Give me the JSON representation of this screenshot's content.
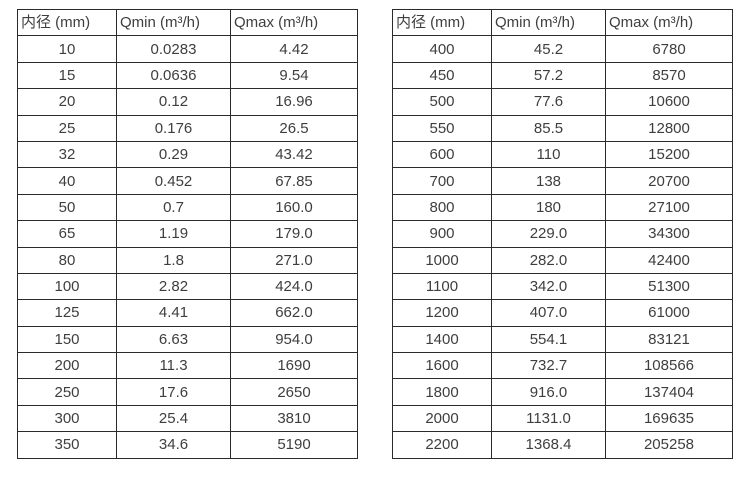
{
  "colors": {
    "background": "#ffffff",
    "border": "#2b2b2b",
    "text": "#3e3e3e"
  },
  "chart_data": [
    {
      "type": "table",
      "name": "flow-table-small-diameters",
      "columns": [
        "内径 (mm)",
        "Qmin (m³/h)",
        "Qmax (m³/h)"
      ],
      "rows": [
        [
          "10",
          "0.0283",
          "4.42"
        ],
        [
          "15",
          "0.0636",
          "9.54"
        ],
        [
          "20",
          "0.12",
          "16.96"
        ],
        [
          "25",
          "0.176",
          "26.5"
        ],
        [
          "32",
          "0.29",
          "43.42"
        ],
        [
          "40",
          "0.452",
          "67.85"
        ],
        [
          "50",
          "0.7",
          "160.0"
        ],
        [
          "65",
          "1.19",
          "179.0"
        ],
        [
          "80",
          "1.8",
          "271.0"
        ],
        [
          "100",
          "2.82",
          "424.0"
        ],
        [
          "125",
          "4.41",
          "662.0"
        ],
        [
          "150",
          "6.63",
          "954.0"
        ],
        [
          "200",
          "11.3",
          "1690"
        ],
        [
          "250",
          "17.6",
          "2650"
        ],
        [
          "300",
          "25.4",
          "3810"
        ],
        [
          "350",
          "34.6",
          "5190"
        ]
      ]
    },
    {
      "type": "table",
      "name": "flow-table-large-diameters",
      "columns": [
        "内径 (mm)",
        "Qmin (m³/h)",
        "Qmax (m³/h)"
      ],
      "rows": [
        [
          "400",
          "45.2",
          "6780"
        ],
        [
          "450",
          "57.2",
          "8570"
        ],
        [
          "500",
          "77.6",
          "10600"
        ],
        [
          "550",
          "85.5",
          "12800"
        ],
        [
          "600",
          "110",
          "15200"
        ],
        [
          "700",
          "138",
          "20700"
        ],
        [
          "800",
          "180",
          "27100"
        ],
        [
          "900",
          "229.0",
          "34300"
        ],
        [
          "1000",
          "282.0",
          "42400"
        ],
        [
          "1100",
          "342.0",
          "51300"
        ],
        [
          "1200",
          "407.0",
          "61000"
        ],
        [
          "1400",
          "554.1",
          "83121"
        ],
        [
          "1600",
          "732.7",
          "108566"
        ],
        [
          "1800",
          "916.0",
          "137404"
        ],
        [
          "2000",
          "1131.0",
          "169635"
        ],
        [
          "2200",
          "1368.4",
          "205258"
        ]
      ]
    }
  ]
}
